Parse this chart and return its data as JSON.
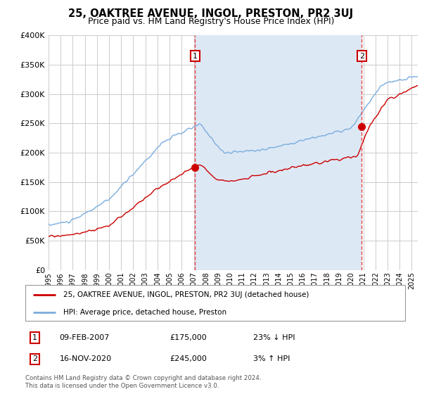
{
  "title": "25, OAKTREE AVENUE, INGOL, PRESTON, PR2 3UJ",
  "subtitle": "Price paid vs. HM Land Registry's House Price Index (HPI)",
  "ylim": [
    0,
    400000
  ],
  "yticks": [
    0,
    50000,
    100000,
    150000,
    200000,
    250000,
    300000,
    350000,
    400000
  ],
  "ytick_labels": [
    "£0",
    "£50K",
    "£100K",
    "£150K",
    "£200K",
    "£250K",
    "£300K",
    "£350K",
    "£400K"
  ],
  "xlim_start": 1995.0,
  "xlim_end": 2025.5,
  "plot_bg_color": "#ffffff",
  "fig_bg_color": "#ffffff",
  "grid_color": "#cccccc",
  "shade_color": "#dde8f5",
  "red_line_color": "#cc0000",
  "blue_line_color": "#7aadde",
  "marker1_x": 2007.1,
  "marker1_y": 175000,
  "marker2_x": 2020.88,
  "marker2_y": 245000,
  "legend_line1": "25, OAKTREE AVENUE, INGOL, PRESTON, PR2 3UJ (detached house)",
  "legend_line2": "HPI: Average price, detached house, Preston",
  "marker1_date": "09-FEB-2007",
  "marker1_price": "£175,000",
  "marker1_hpi": "23% ↓ HPI",
  "marker2_date": "16-NOV-2020",
  "marker2_price": "£245,000",
  "marker2_hpi": "3% ↑ HPI",
  "footnote": "Contains HM Land Registry data © Crown copyright and database right 2024.\nThis data is licensed under the Open Government Licence v3.0."
}
